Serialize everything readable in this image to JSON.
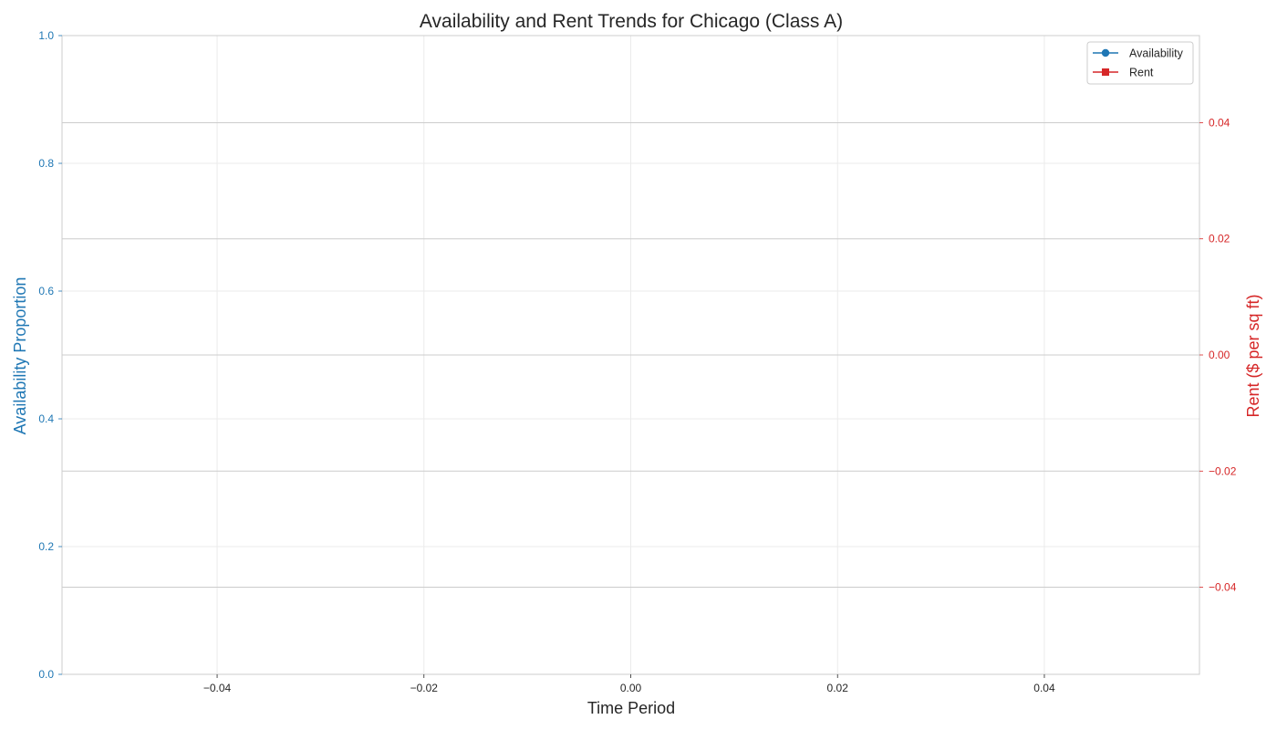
{
  "chart_data": {
    "type": "line",
    "title": "Availability and Rent Trends for Chicago (Class A)",
    "xlabel": "Time Period",
    "ylabel_left": "Availability Proportion",
    "ylabel_right": "Rent ($ per sq ft)",
    "x_ticks": [
      "−0.04",
      "−0.02",
      "0.00",
      "0.02",
      "0.04"
    ],
    "x_tick_values": [
      -0.04,
      -0.02,
      0.0,
      0.02,
      0.04
    ],
    "xlim": [
      -0.055,
      0.055
    ],
    "y_left_ticks": [
      "0.0",
      "0.2",
      "0.4",
      "0.6",
      "0.8",
      "1.0"
    ],
    "y_left_tick_values": [
      0.0,
      0.2,
      0.4,
      0.6,
      0.8,
      1.0
    ],
    "ylim_left": [
      0,
      1
    ],
    "y_right_ticks": [
      "−0.04",
      "−0.02",
      "0.00",
      "0.02",
      "0.04"
    ],
    "y_right_tick_values": [
      -0.04,
      -0.02,
      0.0,
      0.02,
      0.04
    ],
    "ylim_right": [
      -0.055,
      0.055
    ],
    "grid": true,
    "legend_position": "top-right",
    "series": [
      {
        "name": "Availability",
        "axis": "left",
        "color": "#1f77b4",
        "marker": "circle",
        "x": [],
        "values": []
      },
      {
        "name": "Rent",
        "axis": "right",
        "color": "#d62728",
        "marker": "square",
        "x": [],
        "values": []
      }
    ]
  },
  "colors": {
    "left_axis": "#1f77b4",
    "right_axis": "#d62728",
    "text": "#262626",
    "spine": "#cccccc",
    "grid": "#ebebeb",
    "right_grid": "#cccccc"
  }
}
